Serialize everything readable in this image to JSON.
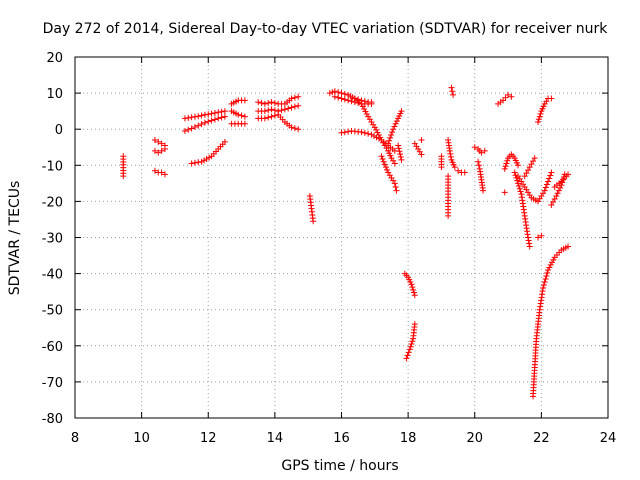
{
  "chart_data": {
    "type": "scatter",
    "title": "Day 272 of 2014, Sidereal Day-to-day VTEC variation (SDTVAR) for receiver nurk",
    "xlabel": "GPS time / hours",
    "ylabel": "SDTVAR / TECUs",
    "xlim": [
      8,
      24
    ],
    "ylim": [
      -80,
      20
    ],
    "x_ticks": [
      8,
      10,
      12,
      14,
      16,
      18,
      20,
      22,
      24
    ],
    "y_ticks": [
      -80,
      -70,
      -60,
      -50,
      -40,
      -30,
      -20,
      -10,
      0,
      10,
      20
    ],
    "grid": true,
    "marker": "+",
    "marker_color": "#ff0000",
    "series": [
      {
        "name": "SDTVAR",
        "segments": [
          {
            "x": [
              9.45,
              9.45
            ],
            "y": [
              -7.5,
              -13.0
            ]
          },
          {
            "x": [
              10.4,
              10.5,
              10.6,
              10.7
            ],
            "y": [
              -3.0,
              -3.5,
              -4.0,
              -4.5
            ]
          },
          {
            "x": [
              10.4,
              10.5,
              10.6,
              10.7
            ],
            "y": [
              -6.0,
              -6.5,
              -6.0,
              -5.5
            ]
          },
          {
            "x": [
              10.4,
              10.5,
              10.6,
              10.7
            ],
            "y": [
              -11.5,
              -12.0,
              -12.0,
              -12.5
            ]
          },
          {
            "x": [
              11.3,
              11.5,
              11.7,
              11.9,
              12.1,
              12.3,
              12.5
            ],
            "y": [
              3.0,
              3.3,
              3.6,
              4.0,
              4.3,
              4.7,
              5.0
            ]
          },
          {
            "x": [
              11.3,
              11.5,
              11.7,
              11.9,
              12.1,
              12.3,
              12.5
            ],
            "y": [
              -0.5,
              0.2,
              1.0,
              1.8,
              2.4,
              3.0,
              3.5
            ]
          },
          {
            "x": [
              11.5,
              11.8,
              12.1,
              12.3,
              12.5
            ],
            "y": [
              -9.5,
              -9.0,
              -7.5,
              -5.5,
              -3.5
            ]
          },
          {
            "x": [
              12.7,
              12.9,
              13.1
            ],
            "y": [
              7.0,
              8.0,
              8.0
            ]
          },
          {
            "x": [
              12.7,
              12.9,
              13.1
            ],
            "y": [
              5.0,
              4.0,
              3.5
            ]
          },
          {
            "x": [
              12.7,
              12.9,
              13.1
            ],
            "y": [
              1.5,
              1.5,
              1.5
            ]
          },
          {
            "x": [
              13.5,
              13.7,
              13.9,
              14.1,
              14.3,
              14.5,
              14.7
            ],
            "y": [
              7.5,
              7.0,
              7.5,
              7.0,
              7.0,
              8.5,
              9.0
            ]
          },
          {
            "x": [
              13.5,
              13.7,
              13.9,
              14.1,
              14.3,
              14.5,
              14.7
            ],
            "y": [
              5.0,
              5.0,
              5.5,
              5.0,
              5.5,
              6.0,
              6.5
            ]
          },
          {
            "x": [
              13.5,
              13.7,
              13.9,
              14.1,
              14.3,
              14.5,
              14.7
            ],
            "y": [
              3.0,
              3.0,
              3.5,
              4.0,
              2.0,
              0.5,
              0.0
            ]
          },
          {
            "x": [
              15.05,
              15.1,
              15.15
            ],
            "y": [
              -18.5,
              -22.0,
              -25.5
            ]
          },
          {
            "x": [
              15.65,
              15.8,
              16.0,
              16.2,
              16.4,
              16.6,
              16.8,
              16.9
            ],
            "y": [
              10.0,
              10.5,
              10.0,
              9.5,
              8.5,
              8.0,
              7.5,
              7.5
            ]
          },
          {
            "x": [
              15.8,
              16.0,
              16.2,
              16.4,
              16.6,
              16.8,
              16.9
            ],
            "y": [
              9.0,
              8.5,
              8.0,
              7.5,
              7.0,
              7.0,
              7.0
            ]
          },
          {
            "x": [
              16.4,
              16.6,
              16.8,
              17.0,
              17.2,
              17.4,
              17.5,
              17.6
            ],
            "y": [
              8.5,
              7.0,
              3.5,
              0.5,
              -3.0,
              -6.0,
              -8.0,
              -9.5
            ]
          },
          {
            "x": [
              16.0,
              16.3,
              16.6,
              16.9,
              17.2,
              17.4,
              17.6
            ],
            "y": [
              -1.0,
              -0.5,
              -0.8,
              -1.5,
              -3.0,
              -4.5,
              -6.0
            ]
          },
          {
            "x": [
              17.2,
              17.4,
              17.6,
              17.65
            ],
            "y": [
              -7.5,
              -12.0,
              -15.0,
              -17.0
            ]
          },
          {
            "x": [
              17.4,
              17.55,
              17.7,
              17.8
            ],
            "y": [
              -4.0,
              0.0,
              3.0,
              5.0
            ]
          },
          {
            "x": [
              17.7,
              17.8
            ],
            "y": [
              -4.5,
              -8.5
            ]
          },
          {
            "x": [
              17.9,
              18.0,
              18.1,
              18.2
            ],
            "y": [
              -40.0,
              -41.0,
              -43.0,
              -46.0
            ]
          },
          {
            "x": [
              17.95,
              18.05,
              18.15,
              18.2
            ],
            "y": [
              -63.5,
              -61.0,
              -58.0,
              -54.0
            ]
          },
          {
            "x": [
              18.2,
              18.3,
              18.4
            ],
            "y": [
              -4.0,
              -5.5,
              -7.0
            ]
          },
          {
            "x": [
              18.4
            ],
            "y": [
              -3.0
            ]
          },
          {
            "x": [
              19.0,
              19.0
            ],
            "y": [
              -7.5,
              -10.5
            ]
          },
          {
            "x": [
              19.2,
              19.25,
              19.3,
              19.4
            ],
            "y": [
              -3.0,
              -6.0,
              -8.5,
              -10.5
            ]
          },
          {
            "x": [
              19.2,
              19.2,
              19.2
            ],
            "y": [
              -13.0,
              -18.0,
              -24.0
            ]
          },
          {
            "x": [
              19.3,
              19.35
            ],
            "y": [
              11.5,
              9.5
            ]
          },
          {
            "x": [
              19.5,
              19.6,
              19.7
            ],
            "y": [
              -11.5,
              -12.0,
              -12.0
            ]
          },
          {
            "x": [
              20.0,
              20.1,
              20.2
            ],
            "y": [
              -5.0,
              -5.5,
              -6.5
            ]
          },
          {
            "x": [
              20.1,
              20.15,
              20.2,
              20.25
            ],
            "y": [
              -9.0,
              -11.0,
              -14.0,
              -17.0
            ]
          },
          {
            "x": [
              20.3
            ],
            "y": [
              -6.0
            ]
          },
          {
            "x": [
              20.7,
              20.85,
              21.0,
              21.1
            ],
            "y": [
              7.0,
              8.0,
              9.5,
              9.0
            ]
          },
          {
            "x": [
              20.9,
              21.0,
              21.1,
              21.2,
              21.3
            ],
            "y": [
              -11.0,
              -8.0,
              -7.0,
              -8.0,
              -10.0
            ]
          },
          {
            "x": [
              21.2,
              21.4,
              21.5,
              21.6,
              21.65
            ],
            "y": [
              -12.0,
              -18.0,
              -24.0,
              -30.0,
              -32.5
            ]
          },
          {
            "x": [
              21.3,
              21.5,
              21.7,
              21.9,
              22.1,
              22.3
            ],
            "y": [
              -13.0,
              -16.0,
              -19.0,
              -20.0,
              -17.0,
              -12.0
            ]
          },
          {
            "x": [
              21.5,
              21.65,
              21.8
            ],
            "y": [
              -13.0,
              -10.5,
              -8.0
            ]
          },
          {
            "x": [
              20.9
            ],
            "y": [
              -17.5
            ]
          },
          {
            "x": [
              21.9,
              22.0,
              22.1,
              22.2,
              22.3
            ],
            "y": [
              2.0,
              5.0,
              7.0,
              8.5,
              8.5
            ]
          },
          {
            "x": [
              22.3,
              22.45,
              22.6,
              22.7
            ],
            "y": [
              -21.0,
              -18.5,
              -15.5,
              -12.5
            ]
          },
          {
            "x": [
              22.4,
              22.6,
              22.75,
              22.8
            ],
            "y": [
              -16.0,
              -14.5,
              -13.0,
              -12.5
            ]
          },
          {
            "x": [
              21.9,
              22.0
            ],
            "y": [
              -30.0,
              -29.5
            ]
          },
          {
            "x": [
              21.75,
              21.8,
              21.85,
              21.95,
              22.05,
              22.2,
              22.4,
              22.6,
              22.8
            ],
            "y": [
              -74.0,
              -66.0,
              -58.0,
              -50.0,
              -44.0,
              -39.0,
              -35.5,
              -33.5,
              -32.5
            ]
          }
        ]
      }
    ]
  }
}
